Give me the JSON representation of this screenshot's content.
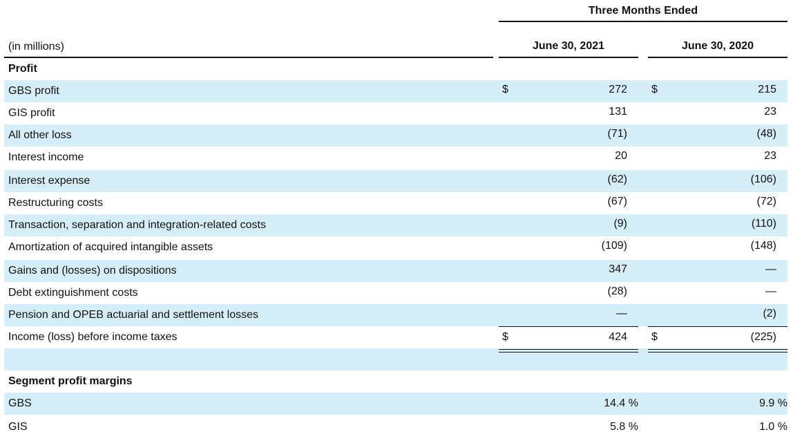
{
  "header": {
    "period": "Three Months Ended",
    "units": "(in millions)",
    "col1": "June 30, 2021",
    "col2": "June 30, 2020"
  },
  "sections": {
    "profit": "Profit",
    "margins": "Segment profit margins"
  },
  "rows": [
    {
      "label": "GBS profit",
      "v1": "272",
      "v2": "215",
      "dollar": "$"
    },
    {
      "label": "GIS profit",
      "v1": "131",
      "v2": "23"
    },
    {
      "label": "All other loss",
      "v1": "(71)",
      "v2": "(48)"
    },
    {
      "label": "Interest income",
      "v1": "20",
      "v2": "23"
    },
    {
      "label": "Interest expense",
      "v1": "(62)",
      "v2": "(106)"
    },
    {
      "label": "Restructuring costs",
      "v1": "(67)",
      "v2": "(72)"
    },
    {
      "label": "Transaction, separation and integration-related costs",
      "v1": "(9)",
      "v2": "(110)"
    },
    {
      "label": "Amortization of acquired intangible assets",
      "v1": "(109)",
      "v2": "(148)"
    },
    {
      "label": "Gains and (losses) on dispositions",
      "v1": "347",
      "v2": "—"
    },
    {
      "label": "Debt extinguishment costs",
      "v1": "(28)",
      "v2": "—"
    },
    {
      "label": "Pension and OPEB actuarial and settlement losses",
      "v1": "—",
      "v2": "(2)"
    },
    {
      "label": "Income (loss) before income taxes",
      "v1": "424",
      "v2": "(225)",
      "dollar": "$"
    }
  ],
  "margins": [
    {
      "label": "GBS",
      "v1": "14.4 %",
      "v2": "9.9 %"
    },
    {
      "label": "GIS",
      "v1": "5.8 %",
      "v2": "1.0 %"
    }
  ]
}
